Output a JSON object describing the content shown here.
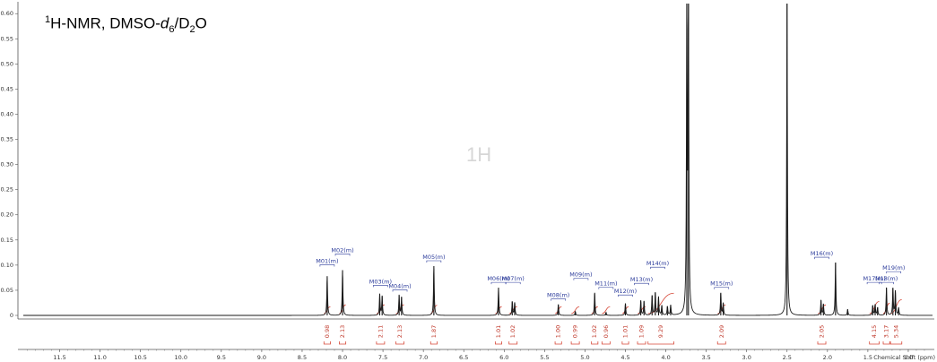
{
  "title": {
    "main": "H-NMR, DMSO-",
    "sup": "1",
    "d": "d",
    "d_sub": "6",
    "slash": "/D",
    "d2_sub": "2",
    "end": "O"
  },
  "watermark": "1H",
  "chart_data": {
    "type": "line",
    "xlabel": "Chemical Shift (ppm)",
    "ylabel": "",
    "xlim": [
      11.95,
      0.7
    ],
    "ylim": [
      0,
      0.62
    ],
    "x_reversed": true,
    "x_ticks": [
      "11.5",
      "11.0",
      "10.5",
      "10.0",
      "9.5",
      "9.0",
      "8.5",
      "8.0",
      "7.5",
      "7.0",
      "6.5",
      "6.0",
      "5.5",
      "5.0",
      "4.5",
      "4.0",
      "3.5",
      "3.0",
      "2.5",
      "2.0",
      "1.5",
      "1.0"
    ],
    "y_ticks": [
      "0",
      "0.05",
      "0.10",
      "0.15",
      "0.20",
      "0.25",
      "0.30",
      "0.35",
      "0.40",
      "0.45",
      "0.50",
      "0.55",
      "0.60"
    ],
    "peaks": [
      {
        "x": 8.19,
        "h": 0.078
      },
      {
        "x": 8.0,
        "h": 0.09
      },
      {
        "x": 7.54,
        "h": 0.042
      },
      {
        "x": 7.51,
        "h": 0.038
      },
      {
        "x": 7.3,
        "h": 0.04
      },
      {
        "x": 7.27,
        "h": 0.036
      },
      {
        "x": 6.87,
        "h": 0.098
      },
      {
        "x": 6.07,
        "h": 0.055
      },
      {
        "x": 5.9,
        "h": 0.028
      },
      {
        "x": 5.87,
        "h": 0.026
      },
      {
        "x": 5.33,
        "h": 0.022
      },
      {
        "x": 5.12,
        "h": 0.008
      },
      {
        "x": 4.88,
        "h": 0.045
      },
      {
        "x": 4.74,
        "h": 0.006
      },
      {
        "x": 4.5,
        "h": 0.024
      },
      {
        "x": 4.31,
        "h": 0.03
      },
      {
        "x": 4.27,
        "h": 0.028
      },
      {
        "x": 4.17,
        "h": 0.04
      },
      {
        "x": 4.13,
        "h": 0.046
      },
      {
        "x": 4.09,
        "h": 0.036
      },
      {
        "x": 4.05,
        "h": 0.02
      },
      {
        "x": 3.98,
        "h": 0.018
      },
      {
        "x": 3.94,
        "h": 0.02
      },
      {
        "x": 3.74,
        "h": 0.62
      },
      {
        "x": 3.72,
        "h": 0.62
      },
      {
        "x": 3.32,
        "h": 0.045
      },
      {
        "x": 3.29,
        "h": 0.025
      },
      {
        "x": 2.5,
        "h": 0.62
      },
      {
        "x": 2.08,
        "h": 0.03
      },
      {
        "x": 2.05,
        "h": 0.022
      },
      {
        "x": 1.9,
        "h": 0.105
      },
      {
        "x": 1.75,
        "h": 0.012
      },
      {
        "x": 1.44,
        "h": 0.02
      },
      {
        "x": 1.41,
        "h": 0.022
      },
      {
        "x": 1.38,
        "h": 0.016
      },
      {
        "x": 1.27,
        "h": 0.055
      },
      {
        "x": 1.19,
        "h": 0.055
      },
      {
        "x": 1.16,
        "h": 0.05
      },
      {
        "x": 1.12,
        "h": 0.015
      }
    ],
    "multiplets": [
      {
        "label": "M01(m)",
        "x": 8.19
      },
      {
        "label": "M02(m)",
        "x": 8.0
      },
      {
        "label": "M03(m)",
        "x": 7.53
      },
      {
        "label": "M04(m)",
        "x": 7.29
      },
      {
        "label": "M05(m)",
        "x": 6.87
      },
      {
        "label": "M06(m)",
        "x": 6.07
      },
      {
        "label": "M07(m)",
        "x": 5.89
      },
      {
        "label": "M08(m)",
        "x": 5.33
      },
      {
        "label": "M09(m)",
        "x": 5.05
      },
      {
        "label": "M11(m)",
        "x": 4.74
      },
      {
        "label": "M12(m)",
        "x": 4.5
      },
      {
        "label": "M13(m)",
        "x": 4.3
      },
      {
        "label": "M14(m)",
        "x": 4.1
      },
      {
        "label": "M15(m)",
        "x": 3.31
      },
      {
        "label": "M16(m)",
        "x": 2.07
      },
      {
        "label": "M17(m)",
        "x": 1.42
      },
      {
        "label": "M18(m)",
        "x": 1.27
      },
      {
        "label": "M19(m)",
        "x": 1.18
      }
    ],
    "integrals": [
      {
        "label": "0.98",
        "x1": 8.23,
        "x2": 8.15
      },
      {
        "label": "2.13",
        "x1": 8.04,
        "x2": 7.96
      },
      {
        "label": "2.11",
        "x1": 7.58,
        "x2": 7.48
      },
      {
        "label": "2.13",
        "x1": 7.34,
        "x2": 7.24
      },
      {
        "label": "1.87",
        "x1": 6.91,
        "x2": 6.83
      },
      {
        "label": "1.01",
        "x1": 6.11,
        "x2": 6.03
      },
      {
        "label": "1.02",
        "x1": 5.94,
        "x2": 5.84
      },
      {
        "label": "1.00",
        "x1": 5.37,
        "x2": 5.29
      },
      {
        "label": "0.99",
        "x1": 5.17,
        "x2": 5.07
      },
      {
        "label": "1.02",
        "x1": 4.92,
        "x2": 4.84
      },
      {
        "label": "0.96",
        "x1": 4.79,
        "x2": 4.69
      },
      {
        "label": "1.01",
        "x1": 4.54,
        "x2": 4.46
      },
      {
        "label": "1.09",
        "x1": 4.35,
        "x2": 4.25
      },
      {
        "label": "9.29",
        "x1": 4.22,
        "x2": 3.9
      },
      {
        "label": "2.09",
        "x1": 3.36,
        "x2": 3.26
      },
      {
        "label": "2.05",
        "x1": 2.12,
        "x2": 2.02
      },
      {
        "label": "4.15",
        "x1": 1.48,
        "x2": 1.36
      },
      {
        "label": "3.17",
        "x1": 1.31,
        "x2": 1.23
      },
      {
        "label": "5.34",
        "x1": 1.22,
        "x2": 1.08
      }
    ],
    "colors": {
      "spectrum": "#1a1a1a",
      "integral": "#d64a3a",
      "label": "#2a3a9a",
      "axis": "#555555"
    }
  }
}
